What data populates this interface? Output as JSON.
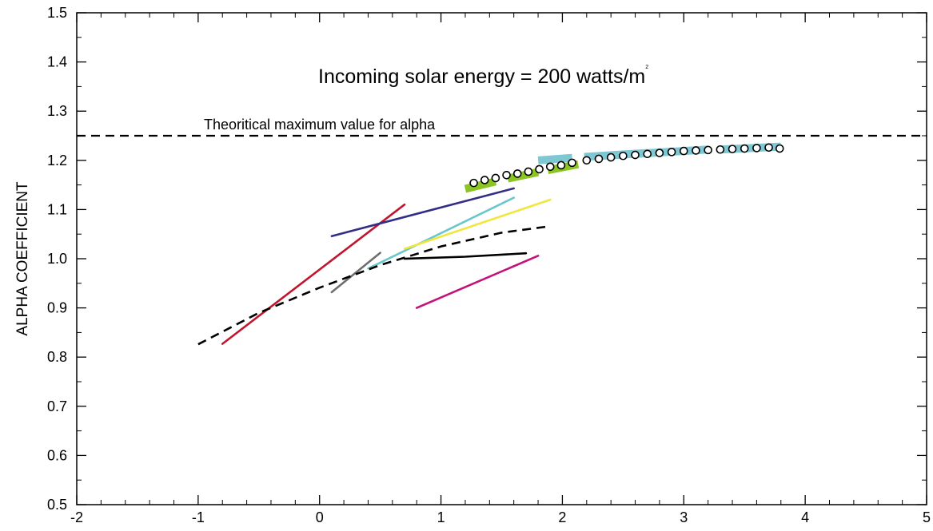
{
  "chart_data": {
    "type": "line",
    "title": "Incoming solar energy = 200 watts/m",
    "title_superscript": "2",
    "xlabel": "",
    "ylabel": "ALPHA COEFFICIENT",
    "xlim": [
      -2,
      5
    ],
    "ylim": [
      0.5,
      1.5
    ],
    "xticks": [
      "-2",
      "-1",
      "0",
      "1",
      "2",
      "3",
      "4",
      "5"
    ],
    "yticks": [
      "0.5",
      "0.6",
      "0.7",
      "0.8",
      "0.9",
      "1.0",
      "1.1",
      "1.2",
      "1.3",
      "1.4",
      "1.5"
    ],
    "grid": false,
    "reference_line": {
      "y": 1.25,
      "label": "Theoritical maximum value for alpha"
    },
    "lines": [
      {
        "color": "#c0152d",
        "points": [
          [
            -0.8,
            0.827
          ],
          [
            0.7,
            1.11
          ]
        ]
      },
      {
        "color": "#322e86",
        "points": [
          [
            0.1,
            1.046
          ],
          [
            1.6,
            1.143
          ]
        ]
      },
      {
        "color": "#6e6e6e",
        "points": [
          [
            0.1,
            0.932
          ],
          [
            0.5,
            1.012
          ]
        ]
      },
      {
        "color": "#69c7cc",
        "points": [
          [
            0.4,
            0.98
          ],
          [
            1.6,
            1.124
          ]
        ]
      },
      {
        "color": "#f0e63c",
        "points": [
          [
            0.7,
            1.02
          ],
          [
            1.9,
            1.12
          ]
        ]
      },
      {
        "color": "#000000",
        "points": [
          [
            0.7,
            1.0
          ],
          [
            1.2,
            1.004
          ],
          [
            1.7,
            1.011
          ]
        ]
      },
      {
        "color": "#c3127a",
        "points": [
          [
            0.8,
            0.9
          ],
          [
            1.8,
            1.006
          ]
        ]
      }
    ],
    "dashed_curve": {
      "color": "#000000",
      "points": [
        [
          -1.0,
          0.826
        ],
        [
          -0.5,
          0.89
        ],
        [
          0.0,
          0.941
        ],
        [
          0.5,
          0.987
        ],
        [
          1.0,
          1.025
        ],
        [
          1.5,
          1.053
        ],
        [
          1.9,
          1.066
        ]
      ]
    },
    "bands": [
      {
        "color": "#8bc523",
        "points": [
          [
            1.2,
            1.142
          ],
          [
            1.45,
            1.157
          ]
        ]
      },
      {
        "color": "#8bc523",
        "points": [
          [
            1.55,
            1.163
          ],
          [
            1.8,
            1.176
          ]
        ]
      },
      {
        "color": "#8bc523",
        "points": [
          [
            1.88,
            1.18
          ],
          [
            2.13,
            1.192
          ]
        ]
      },
      {
        "color": "#7ec8d4",
        "points": [
          [
            1.8,
            1.2
          ],
          [
            2.08,
            1.205
          ]
        ]
      },
      {
        "color": "#7ec8d4",
        "points": [
          [
            2.18,
            1.207
          ],
          [
            2.7,
            1.215
          ]
        ]
      },
      {
        "color": "#7ec8d4",
        "points": [
          [
            2.6,
            1.213
          ],
          [
            3.2,
            1.222
          ]
        ]
      },
      {
        "color": "#7ec8d4",
        "points": [
          [
            3.3,
            1.222
          ],
          [
            3.8,
            1.228
          ]
        ]
      }
    ],
    "circles": {
      "x": [
        1.27,
        1.36,
        1.45,
        1.54,
        1.63,
        1.72,
        1.81,
        1.9,
        1.99,
        2.08,
        2.2,
        2.3,
        2.4,
        2.5,
        2.6,
        2.7,
        2.8,
        2.9,
        3.0,
        3.1,
        3.2,
        3.3,
        3.4,
        3.5,
        3.6,
        3.7,
        3.79
      ],
      "y": [
        1.154,
        1.16,
        1.164,
        1.17,
        1.173,
        1.177,
        1.182,
        1.187,
        1.19,
        1.195,
        1.2,
        1.203,
        1.206,
        1.209,
        1.211,
        1.213,
        1.215,
        1.217,
        1.219,
        1.22,
        1.221,
        1.222,
        1.223,
        1.224,
        1.225,
        1.226,
        1.224
      ]
    }
  }
}
